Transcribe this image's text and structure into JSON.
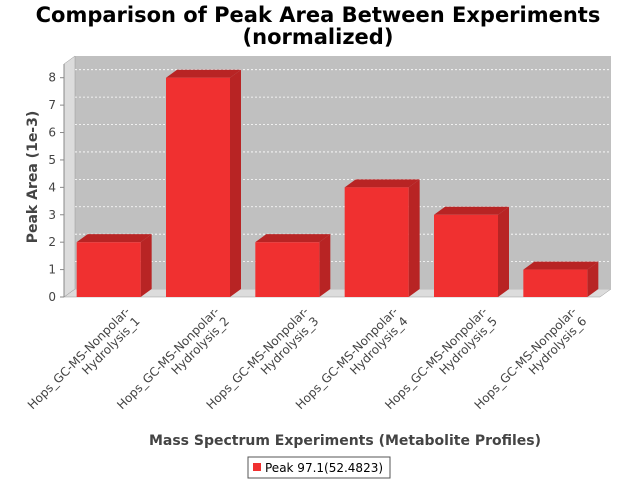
{
  "chart_data": {
    "type": "bar",
    "title_line1": "Comparison of Peak Area Between Experiments",
    "title_line2": "(normalized)",
    "xlabel": "Mass Spectrum Experiments (Metabolite Profiles)",
    "ylabel": "Peak Area (1e-3)",
    "ylim": [
      0,
      8.5
    ],
    "yticks": [
      "0",
      "1",
      "2",
      "3",
      "4",
      "5",
      "6",
      "7",
      "8"
    ],
    "categories": [
      [
        "Hops_GC-MS-Nonpolar-",
        "Hydrolysis_1"
      ],
      [
        "Hops_GC-MS-Nonpolar-",
        "Hydrolysis_2"
      ],
      [
        "Hops_GC-MS-Nonpolar-",
        "Hydrolysis_3"
      ],
      [
        "Hops_GC-MS-Nonpolar-",
        "Hydrolysis_4"
      ],
      [
        "Hops_GC-MS-Nonpolar-",
        "Hydrolysis_5"
      ],
      [
        "Hops_GC-MS-Nonpolar-",
        "Hydrolysis_6"
      ]
    ],
    "series": [
      {
        "name": "Peak 97.1(52.4823)",
        "values": [
          2,
          8,
          2,
          4,
          3,
          1
        ]
      }
    ],
    "grid": true,
    "legend_position": "bottom",
    "colors": {
      "bar_front": "#f03030",
      "bar_top": "#b82424",
      "bar_side": "#b82424",
      "plot_bg": "#c0c0c0",
      "plot_wall": "#dcdcdc"
    }
  }
}
